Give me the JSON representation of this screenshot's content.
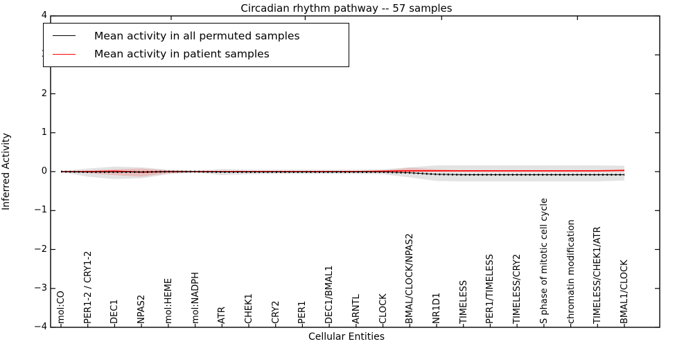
{
  "chart_data": {
    "type": "line",
    "title": "Circadian rhythm pathway -- 57 samples",
    "xlabel": "Cellular Entities",
    "ylabel": "Inferred Activity",
    "ylim": [
      -4,
      4
    ],
    "yticks": [
      4,
      3,
      2,
      1,
      0,
      -1,
      -2,
      -3,
      -4
    ],
    "grid": false,
    "legend_position": "upper left",
    "legend_entries": [
      "Mean activity in all permuted samples",
      "Mean activity in patient samples"
    ],
    "categories": [
      "mol:CO",
      "PER1-2 / CRY1-2",
      "DEC1",
      "NPAS2",
      "mol:HEME",
      "mol:NADPH",
      "ATR",
      "CHEK1",
      "CRY2",
      "PER1",
      "DEC1/BMAL1",
      "ARNTL",
      "CLOCK",
      "BMAL/CLOCK/NPAS2",
      "NR1D1",
      "TIMELESS",
      "PER1/TIMELESS",
      "TIMELESS/CRY2",
      "S phase of mitotic cell cycle",
      "chromatin modification",
      "TIMELESS/CHEK1/ATR",
      "BMAL1/CLOCK"
    ],
    "series": [
      {
        "name": "Mean activity in all permuted samples",
        "color": "#000000",
        "values": [
          0.0,
          -0.01,
          -0.01,
          -0.01,
          0.0,
          0.0,
          -0.01,
          -0.01,
          -0.01,
          -0.01,
          -0.01,
          -0.01,
          -0.01,
          -0.03,
          -0.07,
          -0.08,
          -0.08,
          -0.08,
          -0.08,
          -0.08,
          -0.08,
          -0.08
        ]
      },
      {
        "name": "Mean activity in patient samples",
        "color": "#ff0000",
        "values": [
          0.0,
          0.0,
          0.01,
          -0.01,
          0.0,
          0.0,
          0.0,
          0.0,
          0.0,
          0.0,
          0.0,
          0.0,
          0.01,
          0.02,
          0.02,
          0.02,
          0.02,
          0.02,
          0.02,
          0.02,
          0.02,
          0.03
        ]
      }
    ],
    "bands": [
      {
        "name": "permuted samples range",
        "color": "#999999",
        "opacity": 0.28,
        "upper": [
          0.01,
          0.08,
          0.13,
          0.11,
          0.05,
          0.02,
          0.07,
          0.05,
          0.05,
          0.05,
          0.05,
          0.05,
          0.06,
          0.11,
          0.16,
          0.16,
          0.16,
          0.16,
          0.16,
          0.16,
          0.16,
          0.15
        ],
        "lower": [
          -0.01,
          -0.13,
          -0.19,
          -0.17,
          -0.07,
          -0.02,
          -0.09,
          -0.07,
          -0.06,
          -0.06,
          -0.06,
          -0.06,
          -0.07,
          -0.15,
          -0.24,
          -0.25,
          -0.25,
          -0.25,
          -0.25,
          -0.25,
          -0.25,
          -0.23
        ]
      },
      {
        "name": "patient samples range",
        "color": "#ff0000",
        "opacity": 0.16,
        "upper": [
          0.0,
          0.03,
          0.06,
          0.08,
          0.03,
          0.01,
          0.02,
          0.01,
          0.01,
          0.01,
          0.01,
          0.01,
          0.02,
          0.1,
          0.06,
          0.03,
          0.03,
          0.03,
          0.03,
          0.03,
          0.03,
          0.04
        ],
        "lower": [
          0.0,
          -0.04,
          -0.09,
          -0.13,
          -0.04,
          -0.01,
          -0.02,
          -0.01,
          -0.01,
          -0.01,
          -0.01,
          -0.01,
          -0.02,
          -0.01,
          0.0,
          0.01,
          0.01,
          0.01,
          0.01,
          0.01,
          0.01,
          0.02
        ]
      }
    ]
  }
}
